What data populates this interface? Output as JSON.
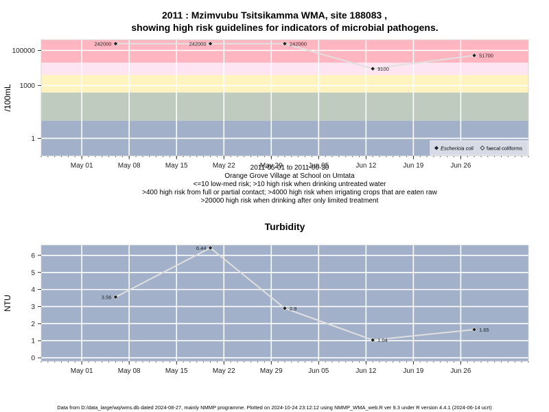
{
  "title": {
    "line1": "2011 : Mzimvubu Tsitsikamma WMA, site 188083 ,",
    "line2": "showing high risk guidelines for indicators of microbial pathogens."
  },
  "panel1": {
    "ylabel": "/100mL",
    "date_range": "2011-05-01 to 2011-06-30",
    "location": "Orange Grove Village at School on Umtata",
    "guidelines": [
      "<=10 low-med risk; >10 high risk when drinking untreated water",
      ">400 high risk from full or partial contact; >4000 high risk when irrigating crops that are eaten raw",
      ">20000 high risk when drinking after only limited treatment"
    ],
    "legend": [
      "Eschericia coli",
      "faecal coliforms"
    ]
  },
  "panel2": {
    "title": "Turbidity",
    "ylabel": "NTU"
  },
  "footer": "Data from D:/data_large/wq/wms.db dated 2024-08-27, mainly NMMP programme. Plotted on 2024-10-24 23:12:12 using NMMP_WMA_web.R ver 9.3 under R version 4.4.1 (2024-06-14 ucrt)",
  "colors": {
    "band_high": "#ffb6c1",
    "band_pink": "#ffe4f2",
    "band_yellow": "#fff4c0",
    "band_green": "#c0cbc0",
    "band_blue": "#a2b1c9",
    "grid": "#ffffff",
    "line": "#e0e0e0",
    "marker": "#222222"
  },
  "chart_data": [
    {
      "type": "line",
      "yscale": "log",
      "ylim": [
        0.1,
        400000
      ],
      "yticks": [
        1,
        1000,
        100000
      ],
      "ytick_labels": [
        "1",
        "1000",
        "100000"
      ],
      "xlim": [
        "2011-04-25",
        "2011-07-06"
      ],
      "xticks": [
        "2011-05-01",
        "2011-05-08",
        "2011-05-15",
        "2011-05-22",
        "2011-05-29",
        "2011-06-05",
        "2011-06-12",
        "2011-06-19",
        "2011-06-26"
      ],
      "xtick_labels": [
        "May 01",
        "May 08",
        "May 15",
        "May 22",
        "May 29",
        "Jun 05",
        "Jun 12",
        "Jun 19",
        "Jun 26"
      ],
      "bands": [
        {
          "from": 20000,
          "to": 400000,
          "color": "#ffb6c1"
        },
        {
          "from": 4000,
          "to": 20000,
          "color": "#ffe4f2"
        },
        {
          "from": 400,
          "to": 4000,
          "color": "#fff4c0"
        },
        {
          "from": 10,
          "to": 400,
          "color": "#c0cbc0"
        },
        {
          "from": 0.1,
          "to": 10,
          "color": "#a2b1c9"
        }
      ],
      "series": [
        {
          "name": "Eschericia coli",
          "x": [
            "2011-05-06",
            "2011-05-20",
            "2011-05-31",
            "2011-06-13",
            "2011-06-28"
          ],
          "y": [
            242000,
            242000,
            242000,
            9100,
            51700
          ],
          "labels": [
            "242000",
            "242000",
            "242000",
            "9100",
            "51700"
          ],
          "label_side": [
            "left",
            "left",
            "right",
            "right",
            "right"
          ]
        }
      ],
      "legend_position": "bottom-right"
    },
    {
      "type": "line",
      "title": "Turbidity",
      "ylabel": "NTU",
      "ylim": [
        -0.2,
        6.6
      ],
      "yticks": [
        0,
        1,
        2,
        3,
        4,
        5,
        6
      ],
      "xlim": [
        "2011-04-25",
        "2011-07-06"
      ],
      "xticks": [
        "2011-05-01",
        "2011-05-08",
        "2011-05-15",
        "2011-05-22",
        "2011-05-29",
        "2011-06-05",
        "2011-06-12",
        "2011-06-19",
        "2011-06-26"
      ],
      "xtick_labels": [
        "May 01",
        "May 08",
        "May 15",
        "May 22",
        "May 29",
        "Jun 05",
        "Jun 12",
        "Jun 19",
        "Jun 26"
      ],
      "series": [
        {
          "name": "Turbidity",
          "x": [
            "2011-05-06",
            "2011-05-20",
            "2011-05-31",
            "2011-06-13",
            "2011-06-28"
          ],
          "y": [
            3.56,
            6.44,
            2.9,
            1.04,
            1.65
          ],
          "labels": [
            "3.56",
            "6.44",
            "2.9",
            "1.04",
            "1.65"
          ],
          "label_side": [
            "left",
            "left",
            "right",
            "right",
            "right"
          ]
        }
      ]
    }
  ]
}
